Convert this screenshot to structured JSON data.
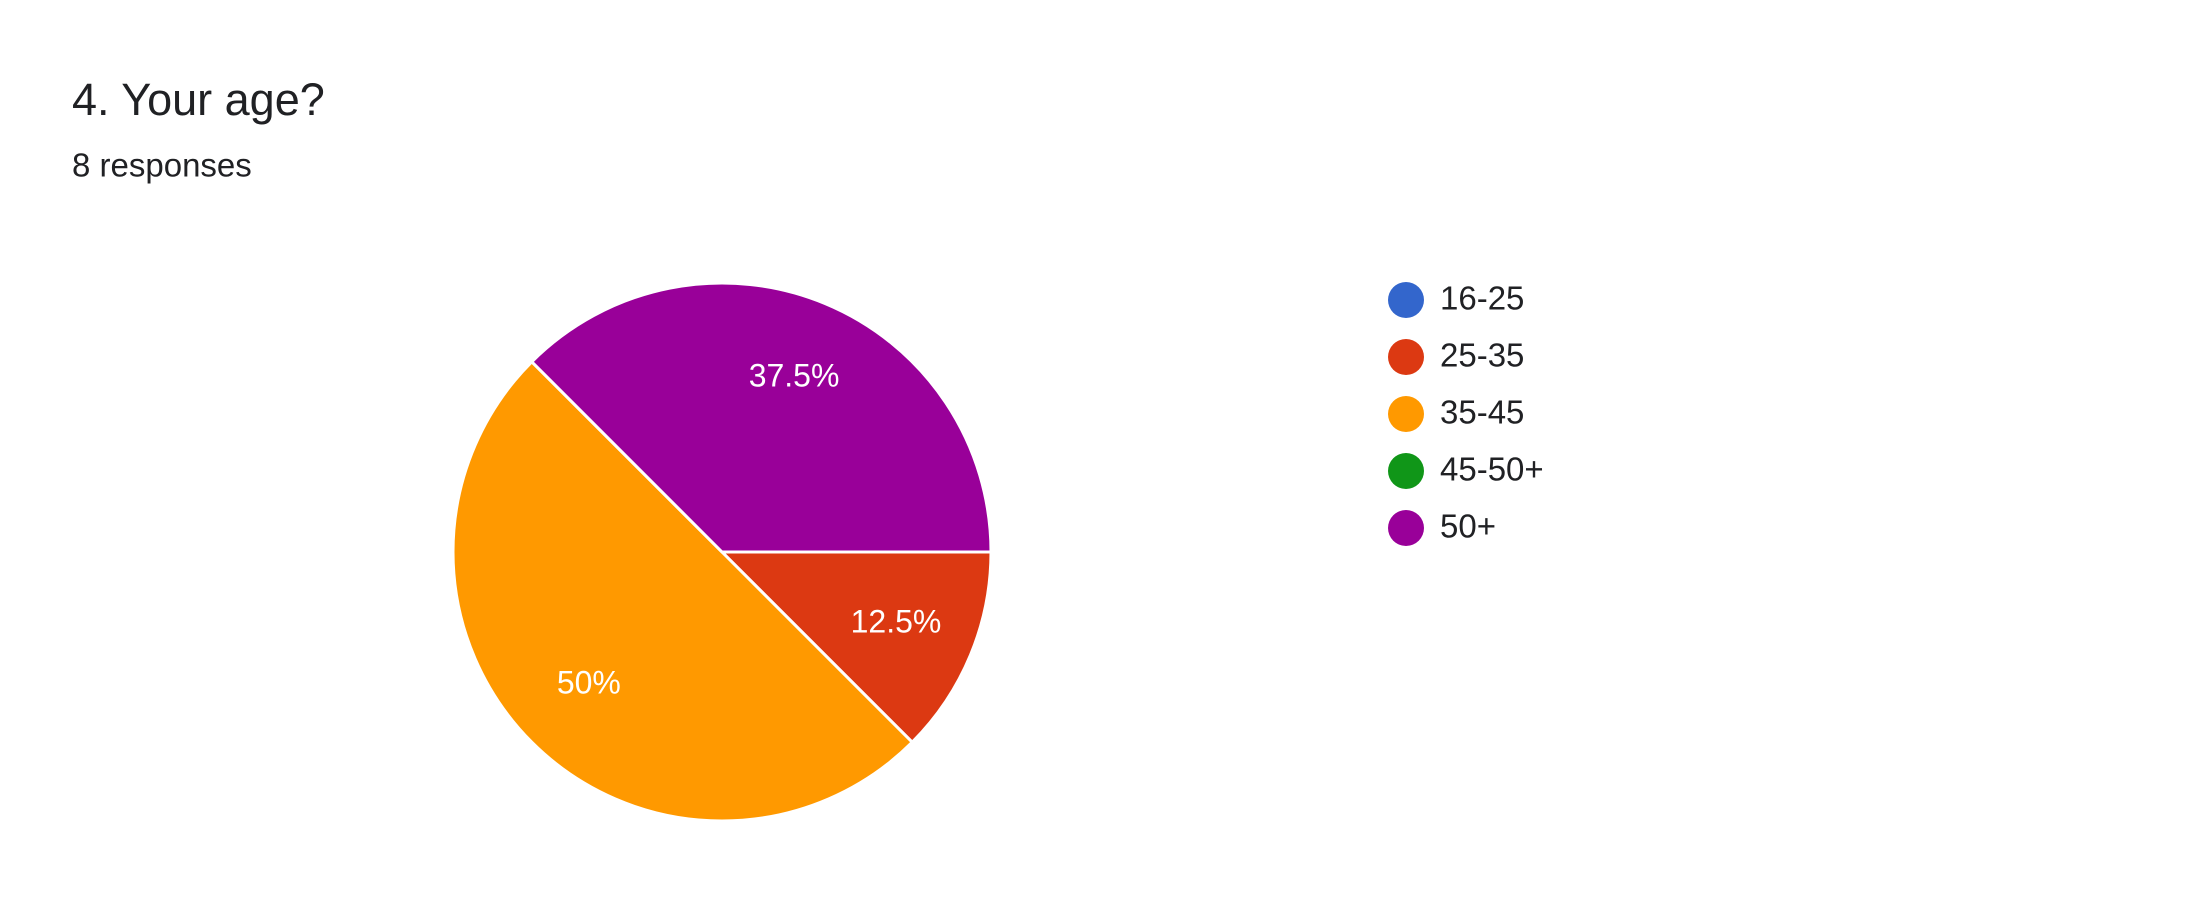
{
  "chart_data": {
    "type": "pie",
    "title": "4. Your age?",
    "subtitle": "8 responses",
    "categories": [
      "16-25",
      "25-35",
      "35-45",
      "45-50+",
      "50+"
    ],
    "values": [
      0,
      12.5,
      50,
      0,
      37.5
    ],
    "value_labels": [
      null,
      "12.5%",
      "50%",
      null,
      "37.5%"
    ],
    "colors": [
      "#3366cc",
      "#dc3912",
      "#ff9900",
      "#109618",
      "#990099"
    ]
  }
}
